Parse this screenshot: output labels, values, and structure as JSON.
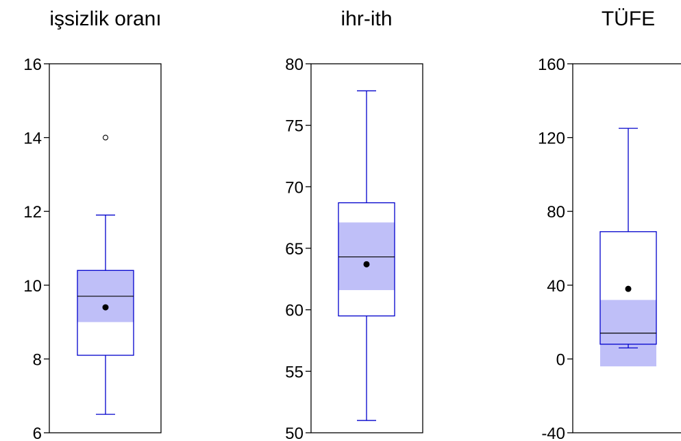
{
  "chart_data": {
    "type": "boxplot",
    "title": "",
    "colors": {
      "box": "#0000cc",
      "ci_band": "#bfbff8",
      "axis": "#000000",
      "median": "#000000",
      "mean": "#000000"
    },
    "panels": [
      {
        "title": "işsizlik oranı",
        "ylim": [
          6,
          16
        ],
        "yticks": [
          6,
          8,
          10,
          12,
          14,
          16
        ],
        "ytick_labels": [
          "6",
          "8",
          "10",
          "12",
          "14",
          "16"
        ],
        "whisker_low": 6.5,
        "q1": 8.1,
        "median": 9.7,
        "q3": 10.4,
        "whisker_high": 11.9,
        "mean": 9.4,
        "ci_low": 9.0,
        "ci_high": 10.4,
        "outliers": [
          14.0
        ]
      },
      {
        "title": "ihr-ith",
        "ylim": [
          50,
          80
        ],
        "yticks": [
          50,
          55,
          60,
          65,
          70,
          75,
          80
        ],
        "ytick_labels": [
          "50",
          "55",
          "60",
          "65",
          "70",
          "75",
          "80"
        ],
        "whisker_low": 51.0,
        "q1": 59.5,
        "median": 64.3,
        "q3": 68.7,
        "whisker_high": 77.8,
        "mean": 63.7,
        "ci_low": 61.6,
        "ci_high": 67.1,
        "outliers": []
      },
      {
        "title": "TÜFE",
        "ylim": [
          -40,
          160
        ],
        "yticks": [
          -40,
          0,
          40,
          80,
          120,
          160
        ],
        "ytick_labels": [
          "-40",
          "0",
          "40",
          "80",
          "120",
          "160"
        ],
        "whisker_low": 6,
        "q1": 8,
        "median": 14,
        "q3": 69,
        "whisker_high": 125,
        "mean": 38,
        "ci_low": -4,
        "ci_high": 32,
        "outliers": []
      }
    ]
  }
}
